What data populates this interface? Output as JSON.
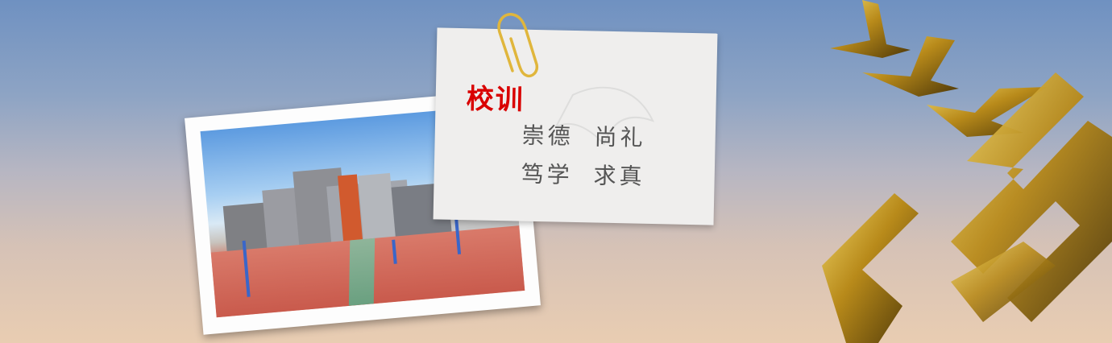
{
  "motto": {
    "title": "校训",
    "line1": "崇德  尚礼",
    "line2": "笃学  求真"
  },
  "colors": {
    "title_red": "#d90000",
    "motto_gray": "#555555",
    "sculpture_gold": "#b88a1a"
  }
}
